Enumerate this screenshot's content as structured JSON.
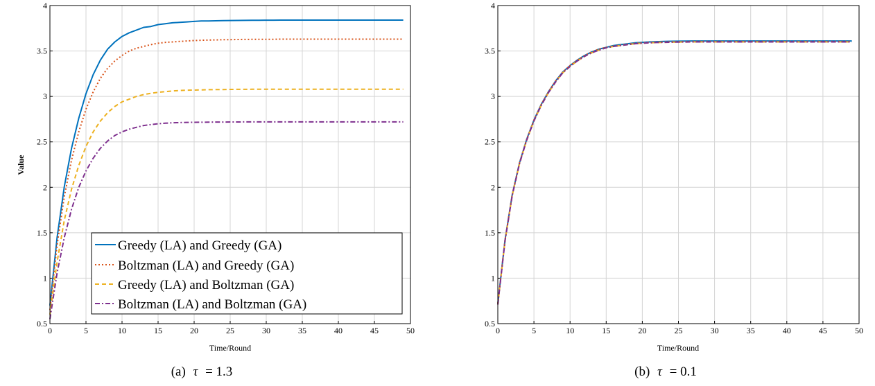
{
  "chart_data": [
    {
      "type": "line",
      "panel": "a",
      "caption_prefix": "(a)",
      "caption_param": "τ",
      "caption_value": "= 1.3",
      "xlabel": "Time/Round",
      "ylabel": "Value",
      "xlim": [
        0,
        50
      ],
      "ylim": [
        0.5,
        4
      ],
      "xticks": [
        "0",
        "5",
        "10",
        "15",
        "20",
        "25",
        "30",
        "35",
        "40",
        "45",
        "50"
      ],
      "yticks": [
        "0.5",
        "1",
        "1.5",
        "2",
        "2.5",
        "3",
        "3.5",
        "4"
      ],
      "grid": true,
      "legend_position": "bottom-right",
      "x": [
        0,
        1,
        2,
        3,
        4,
        5,
        6,
        7,
        8,
        9,
        10,
        11,
        12,
        13,
        14,
        15,
        16,
        17,
        18,
        19,
        20,
        21,
        22,
        23,
        24,
        25,
        26,
        27,
        28,
        29,
        30,
        31,
        32,
        33,
        34,
        35,
        36,
        37,
        38,
        39,
        40,
        41,
        42,
        43,
        44,
        45,
        46,
        47,
        48,
        49
      ],
      "series": [
        {
          "name": "Greedy (LA) and Greedy (GA)",
          "color": "#0072BD",
          "dash": "solid",
          "values": [
            0.7,
            1.45,
            2.01,
            2.43,
            2.76,
            3.03,
            3.24,
            3.4,
            3.52,
            3.6,
            3.66,
            3.7,
            3.73,
            3.76,
            3.77,
            3.79,
            3.8,
            3.81,
            3.815,
            3.82,
            3.825,
            3.83,
            3.83,
            3.832,
            3.834,
            3.835,
            3.836,
            3.837,
            3.838,
            3.838,
            3.839,
            3.839,
            3.84,
            3.84,
            3.84,
            3.84,
            3.84,
            3.84,
            3.84,
            3.84,
            3.84,
            3.84,
            3.84,
            3.84,
            3.84,
            3.84,
            3.84,
            3.84,
            3.84,
            3.84
          ]
        },
        {
          "name": "Boltzman (LA) and Greedy (GA)",
          "color": "#D95319",
          "dash": "dotted",
          "values": [
            0.65,
            1.37,
            1.9,
            2.3,
            2.61,
            2.86,
            3.05,
            3.2,
            3.31,
            3.39,
            3.45,
            3.5,
            3.53,
            3.55,
            3.57,
            3.585,
            3.595,
            3.6,
            3.605,
            3.61,
            3.615,
            3.618,
            3.62,
            3.622,
            3.624,
            3.625,
            3.626,
            3.627,
            3.628,
            3.628,
            3.629,
            3.629,
            3.63,
            3.63,
            3.63,
            3.63,
            3.63,
            3.63,
            3.63,
            3.63,
            3.63,
            3.63,
            3.63,
            3.63,
            3.63,
            3.63,
            3.63,
            3.63,
            3.63,
            3.63
          ]
        },
        {
          "name": "Greedy (LA) and Boltzman (GA)",
          "color": "#EDB120",
          "dash": "dashed",
          "values": [
            0.6,
            1.18,
            1.64,
            1.98,
            2.24,
            2.45,
            2.61,
            2.73,
            2.82,
            2.89,
            2.94,
            2.97,
            3.0,
            3.02,
            3.035,
            3.045,
            3.053,
            3.06,
            3.065,
            3.068,
            3.07,
            3.072,
            3.074,
            3.075,
            3.076,
            3.077,
            3.078,
            3.078,
            3.079,
            3.079,
            3.08,
            3.08,
            3.08,
            3.08,
            3.08,
            3.08,
            3.08,
            3.08,
            3.08,
            3.08,
            3.08,
            3.08,
            3.08,
            3.08,
            3.08,
            3.08,
            3.08,
            3.08,
            3.08,
            3.08
          ]
        },
        {
          "name": "Boltzman (LA) and Boltzman (GA)",
          "color": "#7E2F8E",
          "dash": "dashdot",
          "values": [
            0.55,
            1.06,
            1.45,
            1.76,
            2.0,
            2.18,
            2.32,
            2.43,
            2.51,
            2.57,
            2.61,
            2.64,
            2.66,
            2.68,
            2.69,
            2.7,
            2.705,
            2.71,
            2.712,
            2.714,
            2.715,
            2.716,
            2.717,
            2.718,
            2.718,
            2.719,
            2.719,
            2.72,
            2.72,
            2.72,
            2.72,
            2.72,
            2.72,
            2.72,
            2.72,
            2.72,
            2.72,
            2.72,
            2.72,
            2.72,
            2.72,
            2.72,
            2.72,
            2.72,
            2.72,
            2.72,
            2.72,
            2.72,
            2.72,
            2.72
          ]
        }
      ]
    },
    {
      "type": "line",
      "panel": "b",
      "caption_prefix": "(b)",
      "caption_param": "τ",
      "caption_value": "= 0.1",
      "xlabel": "Time/Round",
      "ylabel": "",
      "xlim": [
        0,
        50
      ],
      "ylim": [
        0.5,
        4
      ],
      "xticks": [
        "0",
        "5",
        "10",
        "15",
        "20",
        "25",
        "30",
        "35",
        "40",
        "45",
        "50"
      ],
      "yticks": [
        "0.5",
        "1",
        "1.5",
        "2",
        "2.5",
        "3",
        "3.5",
        "4"
      ],
      "grid": true,
      "x": [
        0,
        1,
        2,
        3,
        4,
        5,
        6,
        7,
        8,
        9,
        10,
        11,
        12,
        13,
        14,
        15,
        16,
        17,
        18,
        19,
        20,
        21,
        22,
        23,
        24,
        25,
        26,
        27,
        28,
        29,
        30,
        31,
        32,
        33,
        34,
        35,
        36,
        37,
        38,
        39,
        40,
        41,
        42,
        43,
        44,
        45,
        46,
        47,
        48,
        49
      ],
      "series": [
        {
          "color": "#0072BD",
          "dash": "solid",
          "values": [
            0.72,
            1.42,
            1.92,
            2.27,
            2.53,
            2.74,
            2.91,
            3.05,
            3.17,
            3.27,
            3.34,
            3.4,
            3.45,
            3.49,
            3.52,
            3.54,
            3.56,
            3.57,
            3.58,
            3.59,
            3.595,
            3.6,
            3.603,
            3.605,
            3.607,
            3.608,
            3.609,
            3.61,
            3.61,
            3.61,
            3.61,
            3.61,
            3.61,
            3.61,
            3.61,
            3.61,
            3.61,
            3.61,
            3.61,
            3.61,
            3.61,
            3.61,
            3.61,
            3.61,
            3.61,
            3.61,
            3.61,
            3.61,
            3.61,
            3.61
          ]
        },
        {
          "color": "#D95319",
          "dash": "dotted",
          "values": [
            0.72,
            1.42,
            1.92,
            2.27,
            2.53,
            2.74,
            2.91,
            3.05,
            3.17,
            3.27,
            3.34,
            3.4,
            3.45,
            3.49,
            3.52,
            3.54,
            3.555,
            3.565,
            3.575,
            3.585,
            3.59,
            3.595,
            3.598,
            3.6,
            3.602,
            3.603,
            3.604,
            3.605,
            3.605,
            3.605,
            3.605,
            3.605,
            3.605,
            3.605,
            3.605,
            3.605,
            3.605,
            3.605,
            3.605,
            3.605,
            3.605,
            3.605,
            3.605,
            3.605,
            3.605,
            3.605,
            3.605,
            3.605,
            3.605,
            3.605
          ]
        },
        {
          "color": "#EDB120",
          "dash": "dashed",
          "values": [
            0.71,
            1.41,
            1.91,
            2.26,
            2.52,
            2.73,
            2.9,
            3.04,
            3.16,
            3.26,
            3.33,
            3.39,
            3.44,
            3.48,
            3.51,
            3.535,
            3.55,
            3.56,
            3.57,
            3.58,
            3.585,
            3.59,
            3.593,
            3.595,
            3.597,
            3.598,
            3.599,
            3.6,
            3.6,
            3.6,
            3.6,
            3.6,
            3.6,
            3.6,
            3.6,
            3.6,
            3.6,
            3.6,
            3.6,
            3.6,
            3.6,
            3.6,
            3.6,
            3.6,
            3.6,
            3.6,
            3.6,
            3.6,
            3.6,
            3.6
          ]
        },
        {
          "color": "#7E2F8E",
          "dash": "dashdot",
          "values": [
            0.71,
            1.41,
            1.91,
            2.26,
            2.52,
            2.73,
            2.9,
            3.04,
            3.16,
            3.26,
            3.33,
            3.39,
            3.44,
            3.48,
            3.51,
            3.535,
            3.55,
            3.56,
            3.57,
            3.58,
            3.585,
            3.59,
            3.593,
            3.595,
            3.597,
            3.598,
            3.599,
            3.6,
            3.6,
            3.6,
            3.6,
            3.6,
            3.6,
            3.6,
            3.6,
            3.6,
            3.6,
            3.6,
            3.6,
            3.6,
            3.6,
            3.6,
            3.6,
            3.6,
            3.6,
            3.6,
            3.6,
            3.6,
            3.6,
            3.6
          ]
        }
      ]
    }
  ]
}
